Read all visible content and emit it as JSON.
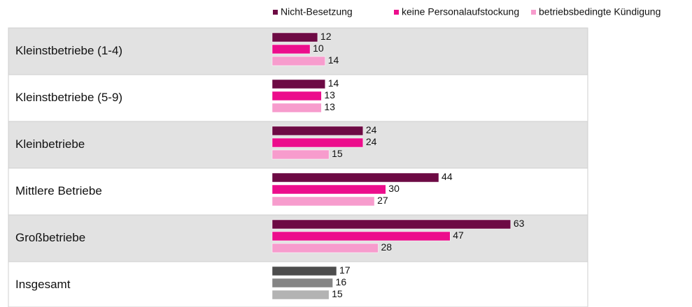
{
  "chart_data": {
    "type": "bar",
    "orientation": "horizontal",
    "categories": [
      "Kleinstbetriebe (1-4)",
      "Kleinstbetriebe (5-9)",
      "Kleinbetriebe",
      "Mittlere Betriebe",
      "Großbetriebe",
      "Insgesamt"
    ],
    "series": [
      {
        "name": "Nicht-Besetzung",
        "color": "#6d0a44",
        "colors": [
          "#6d0a44",
          "#6d0a44",
          "#6d0a44",
          "#6d0a44",
          "#6d0a44",
          "#4d4d4d"
        ],
        "values": [
          12,
          14,
          24,
          44,
          63,
          17
        ]
      },
      {
        "name": "keine Personalaufstockung",
        "color": "#ec0d8c",
        "colors": [
          "#ec0d8c",
          "#ec0d8c",
          "#ec0d8c",
          "#ec0d8c",
          "#ec0d8c",
          "#858585"
        ],
        "values": [
          10,
          13,
          24,
          30,
          47,
          16
        ]
      },
      {
        "name": "betriebsbedingte Kündigung",
        "color": "#f79ccd",
        "colors": [
          "#f79ccd",
          "#f79ccd",
          "#f79ccd",
          "#f79ccd",
          "#f79ccd",
          "#b3b3b3"
        ],
        "values": [
          14,
          13,
          15,
          27,
          28,
          15
        ]
      }
    ],
    "row_colors": [
      "#e2e2e2",
      "#ffffff",
      "#e2e2e2",
      "#ffffff",
      "#e2e2e2",
      "#ffffff"
    ],
    "legend": "top-right"
  }
}
